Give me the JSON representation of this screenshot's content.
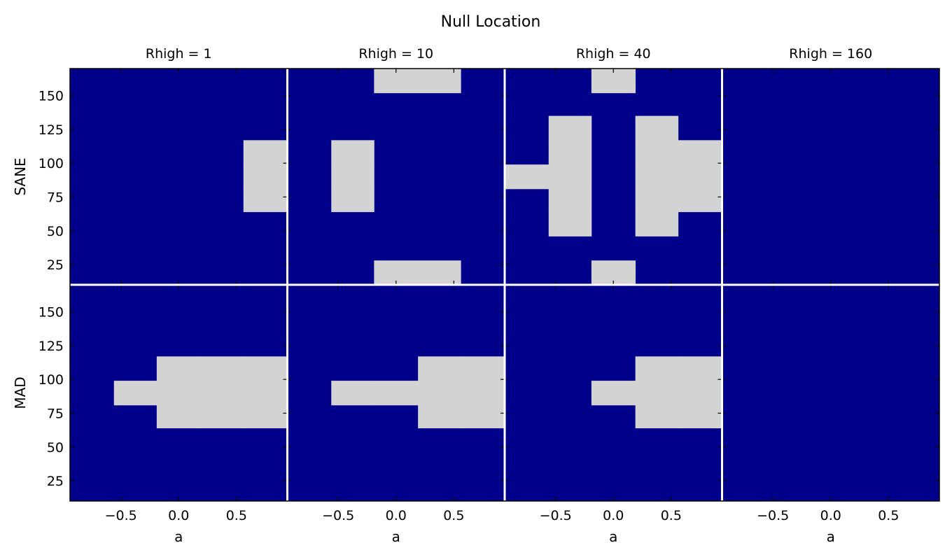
{
  "title": "Null Location",
  "colors": {
    "background": "#00008b",
    "null_region": "#d3d3d3",
    "divider": "#ffffff"
  },
  "chart_data": {
    "type": "heatmap",
    "title": "Null Location",
    "columns": [
      "Rhigh = 1",
      "Rhigh = 10",
      "Rhigh = 40",
      "Rhigh = 160"
    ],
    "rows": [
      "SANE",
      "MAD"
    ],
    "xlabel": "a",
    "xlim": [
      -0.94,
      0.94
    ],
    "ylim": [
      10,
      170
    ],
    "xticks": [
      "−0.5",
      "0.0",
      "0.5"
    ],
    "xtick_values": [
      -0.5,
      0.0,
      0.5
    ],
    "yticks": [
      "25",
      "50",
      "75",
      "100",
      "125",
      "150"
    ],
    "ytick_values": [
      25,
      50,
      75,
      100,
      125,
      150
    ],
    "a_bins": [
      -0.94,
      -0.56,
      -0.19,
      0.19,
      0.56,
      0.94
    ],
    "rhigh_bins": [
      10,
      28,
      46,
      64,
      81,
      99,
      117,
      135,
      152,
      170
    ],
    "panels": [
      {
        "row": "SANE",
        "column": "Rhigh = 1",
        "null_cells": [
          [
            4,
            3
          ],
          [
            4,
            4
          ],
          [
            4,
            5
          ]
        ]
      },
      {
        "row": "SANE",
        "column": "Rhigh = 10",
        "null_cells": [
          [
            1,
            3
          ],
          [
            1,
            4
          ],
          [
            1,
            5
          ],
          [
            2,
            0
          ],
          [
            3,
            0
          ],
          [
            2,
            8
          ],
          [
            3,
            8
          ]
        ]
      },
      {
        "row": "SANE",
        "column": "Rhigh = 40",
        "null_cells": [
          [
            0,
            4
          ],
          [
            1,
            2
          ],
          [
            1,
            3
          ],
          [
            1,
            4
          ],
          [
            1,
            5
          ],
          [
            1,
            6
          ],
          [
            2,
            0
          ],
          [
            2,
            8
          ],
          [
            3,
            2
          ],
          [
            3,
            3
          ],
          [
            3,
            4
          ],
          [
            3,
            5
          ],
          [
            3,
            6
          ],
          [
            4,
            3
          ],
          [
            4,
            4
          ],
          [
            4,
            5
          ]
        ]
      },
      {
        "row": "SANE",
        "column": "Rhigh = 160",
        "null_cells": []
      },
      {
        "row": "MAD",
        "column": "Rhigh = 1",
        "null_cells": [
          [
            1,
            4
          ],
          [
            2,
            3
          ],
          [
            2,
            4
          ],
          [
            2,
            5
          ],
          [
            3,
            3
          ],
          [
            3,
            4
          ],
          [
            3,
            5
          ],
          [
            4,
            3
          ],
          [
            4,
            4
          ],
          [
            4,
            5
          ]
        ]
      },
      {
        "row": "MAD",
        "column": "Rhigh = 10",
        "null_cells": [
          [
            1,
            4
          ],
          [
            2,
            4
          ],
          [
            3,
            3
          ],
          [
            3,
            4
          ],
          [
            3,
            5
          ],
          [
            4,
            3
          ],
          [
            4,
            4
          ],
          [
            4,
            5
          ]
        ]
      },
      {
        "row": "MAD",
        "column": "Rhigh = 40",
        "null_cells": [
          [
            2,
            4
          ],
          [
            3,
            3
          ],
          [
            3,
            4
          ],
          [
            3,
            5
          ],
          [
            4,
            3
          ],
          [
            4,
            4
          ],
          [
            4,
            5
          ]
        ]
      },
      {
        "row": "MAD",
        "column": "Rhigh = 160",
        "null_cells": []
      }
    ]
  }
}
